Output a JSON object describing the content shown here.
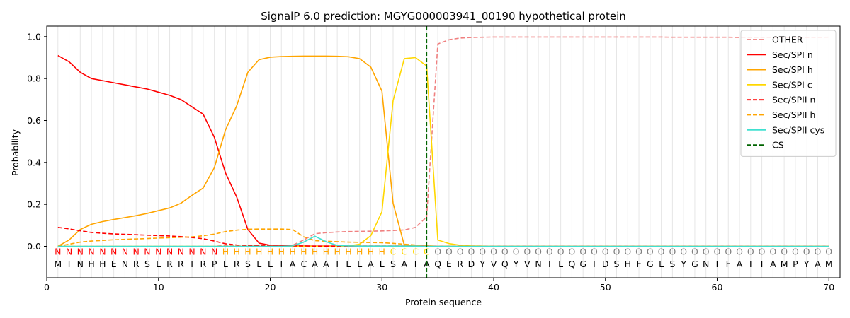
{
  "chart_data": {
    "type": "line",
    "title": "SignalP 6.0 prediction: MGYG000003941_00190 hypothetical protein",
    "xlabel": "Protein sequence",
    "ylabel": "Probability",
    "xlim": [
      0,
      71
    ],
    "ylim": [
      -0.15,
      1.05
    ],
    "xticks": [
      0,
      10,
      20,
      30,
      40,
      50,
      60,
      70
    ],
    "yticks": [
      0.0,
      0.2,
      0.4,
      0.6,
      0.8,
      1.0
    ],
    "grid": "vertical lines at each residue",
    "legend_position": "top-right",
    "sequence": [
      "M",
      "T",
      "N",
      "H",
      "H",
      "E",
      "N",
      "R",
      "S",
      "L",
      "R",
      "R",
      "I",
      "R",
      "P",
      "L",
      "R",
      "S",
      "L",
      "L",
      "T",
      "A",
      "C",
      "A",
      "A",
      "T",
      "L",
      "L",
      "A",
      "L",
      "S",
      "A",
      "T",
      "A",
      "Q",
      "E",
      "R",
      "D",
      "Y",
      "V",
      "Q",
      "Y",
      "V",
      "N",
      "T",
      "L",
      "Q",
      "G",
      "T",
      "D",
      "S",
      "H",
      "F",
      "G",
      "L",
      "S",
      "Y",
      "G",
      "N",
      "T",
      "F",
      "A",
      "T",
      "T",
      "A",
      "M",
      "P",
      "Y",
      "A",
      "M"
    ],
    "labels": [
      "N",
      "N",
      "N",
      "N",
      "N",
      "N",
      "N",
      "N",
      "N",
      "N",
      "N",
      "N",
      "N",
      "N",
      "N",
      "H",
      "H",
      "H",
      "H",
      "H",
      "H",
      "H",
      "H",
      "H",
      "H",
      "H",
      "H",
      "H",
      "H",
      "H",
      "C",
      "C",
      "C",
      "C",
      "O",
      "O",
      "O",
      "O",
      "O",
      "O",
      "O",
      "O",
      "O",
      "O",
      "O",
      "O",
      "O",
      "O",
      "O",
      "O",
      "O",
      "O",
      "O",
      "O",
      "O",
      "O",
      "O",
      "O",
      "O",
      "O",
      "O",
      "O",
      "O",
      "O",
      "O",
      "O",
      "O",
      "O",
      "O",
      "O"
    ],
    "label_colors": {
      "N": "#ff0000",
      "H": "#ffa500",
      "C": "#ffd700",
      "O": "#808080"
    },
    "cleavage_site": 34,
    "series": [
      {
        "name": "OTHER",
        "color": "#f08080",
        "dash": true,
        "values": [
          0.0,
          0.0,
          0.0,
          0.0,
          0.0,
          0.0,
          0.0,
          0.0,
          0.0,
          0.0,
          0.0,
          0.0,
          0.0,
          0.0,
          0.0,
          0.005,
          0.005,
          0.005,
          0.005,
          0.005,
          0.005,
          0.005,
          0.03,
          0.06,
          0.065,
          0.068,
          0.07,
          0.071,
          0.072,
          0.073,
          0.075,
          0.078,
          0.09,
          0.14,
          0.965,
          0.985,
          0.993,
          0.996,
          0.997,
          0.998,
          0.998,
          0.998,
          0.998,
          0.998,
          0.998,
          0.998,
          0.998,
          0.998,
          0.998,
          0.998,
          0.998,
          0.998,
          0.998,
          0.998,
          0.998,
          0.997,
          0.997,
          0.997,
          0.997,
          0.997,
          0.997,
          0.996,
          0.996,
          0.996,
          0.996,
          0.996,
          0.996,
          0.996,
          0.996,
          0.997
        ]
      },
      {
        "name": "Sec/SPI n",
        "color": "#ff0000",
        "dash": false,
        "values": [
          0.91,
          0.88,
          0.83,
          0.8,
          0.79,
          0.78,
          0.77,
          0.76,
          0.75,
          0.735,
          0.72,
          0.7,
          0.665,
          0.63,
          0.52,
          0.35,
          0.235,
          0.08,
          0.015,
          0.005,
          0.003,
          0.002,
          0.001,
          0.001,
          0.001,
          0.001,
          0.001,
          0.001,
          0.001,
          0.001,
          0.001,
          0.001,
          0.001,
          0.001,
          0.0,
          0.0,
          0.0,
          0.0,
          0.0,
          0.0,
          0.0,
          0.0,
          0.0,
          0.0,
          0.0,
          0.0,
          0.0,
          0.0,
          0.0,
          0.0,
          0.0,
          0.0,
          0.0,
          0.0,
          0.0,
          0.0,
          0.0,
          0.0,
          0.0,
          0.0,
          0.0,
          0.0,
          0.0,
          0.0,
          0.0,
          0.0,
          0.0,
          0.0,
          0.0,
          0.0
        ]
      },
      {
        "name": "Sec/SPI h",
        "color": "#ffa500",
        "dash": false,
        "values": [
          0.0,
          0.03,
          0.08,
          0.105,
          0.118,
          0.128,
          0.137,
          0.146,
          0.157,
          0.17,
          0.183,
          0.205,
          0.243,
          0.278,
          0.375,
          0.555,
          0.67,
          0.83,
          0.89,
          0.902,
          0.905,
          0.906,
          0.907,
          0.907,
          0.907,
          0.906,
          0.904,
          0.895,
          0.855,
          0.74,
          0.205,
          0.005,
          0.002,
          0.001,
          0.0,
          0.0,
          0.0,
          0.0,
          0.0,
          0.0,
          0.0,
          0.0,
          0.0,
          0.0,
          0.0,
          0.0,
          0.0,
          0.0,
          0.0,
          0.0,
          0.0,
          0.0,
          0.0,
          0.0,
          0.0,
          0.0,
          0.0,
          0.0,
          0.0,
          0.0,
          0.0,
          0.0,
          0.0,
          0.0,
          0.0,
          0.0,
          0.0,
          0.0,
          0.0,
          0.0
        ]
      },
      {
        "name": "Sec/SPI c",
        "color": "#ffd700",
        "dash": false,
        "values": [
          0.0,
          0.0,
          0.0,
          0.0,
          0.0,
          0.0,
          0.0,
          0.0,
          0.0,
          0.0,
          0.0,
          0.0,
          0.0,
          0.0,
          0.0,
          0.0,
          0.0,
          0.0,
          0.0,
          0.0,
          0.0,
          0.0,
          0.0,
          0.0,
          0.0,
          0.0,
          0.002,
          0.01,
          0.05,
          0.165,
          0.695,
          0.895,
          0.9,
          0.86,
          0.03,
          0.013,
          0.005,
          0.002,
          0.001,
          0.0,
          0.0,
          0.0,
          0.0,
          0.0,
          0.0,
          0.0,
          0.0,
          0.0,
          0.0,
          0.0,
          0.0,
          0.0,
          0.0,
          0.0,
          0.0,
          0.0,
          0.0,
          0.0,
          0.0,
          0.0,
          0.0,
          0.0,
          0.0,
          0.0,
          0.0,
          0.0,
          0.0,
          0.0,
          0.0,
          0.0
        ]
      },
      {
        "name": "Sec/SPII n",
        "color": "#ff0000",
        "dash": true,
        "values": [
          0.09,
          0.083,
          0.074,
          0.066,
          0.062,
          0.059,
          0.057,
          0.055,
          0.053,
          0.051,
          0.049,
          0.046,
          0.042,
          0.036,
          0.025,
          0.012,
          0.006,
          0.004,
          0.003,
          0.002,
          0.002,
          0.002,
          0.002,
          0.001,
          0.001,
          0.001,
          0.001,
          0.001,
          0.001,
          0.001,
          0.001,
          0.001,
          0.001,
          0.001,
          0.0,
          0.0,
          0.0,
          0.0,
          0.0,
          0.0,
          0.0,
          0.0,
          0.0,
          0.0,
          0.0,
          0.0,
          0.0,
          0.0,
          0.0,
          0.0,
          0.0,
          0.0,
          0.0,
          0.0,
          0.0,
          0.0,
          0.0,
          0.0,
          0.0,
          0.0,
          0.0,
          0.0,
          0.0,
          0.0,
          0.0,
          0.0,
          0.0,
          0.0,
          0.0,
          0.0
        ]
      },
      {
        "name": "Sec/SPII h",
        "color": "#ffa500",
        "dash": true,
        "values": [
          0.0,
          0.01,
          0.02,
          0.025,
          0.028,
          0.031,
          0.033,
          0.035,
          0.037,
          0.039,
          0.041,
          0.043,
          0.045,
          0.05,
          0.058,
          0.07,
          0.077,
          0.081,
          0.082,
          0.082,
          0.082,
          0.08,
          0.045,
          0.027,
          0.024,
          0.022,
          0.02,
          0.019,
          0.018,
          0.017,
          0.014,
          0.01,
          0.006,
          0.003,
          0.0,
          0.0,
          0.0,
          0.0,
          0.0,
          0.0,
          0.0,
          0.0,
          0.0,
          0.0,
          0.0,
          0.0,
          0.0,
          0.0,
          0.0,
          0.0,
          0.0,
          0.0,
          0.0,
          0.0,
          0.0,
          0.0,
          0.0,
          0.0,
          0.0,
          0.0,
          0.0,
          0.0,
          0.0,
          0.0,
          0.0,
          0.0,
          0.0,
          0.0,
          0.0,
          0.0
        ]
      },
      {
        "name": "Sec/SPII cys",
        "color": "#40e0d0",
        "dash": false,
        "values": [
          0.0,
          0.0,
          0.0,
          0.0,
          0.0,
          0.0,
          0.0,
          0.0,
          0.0,
          0.0,
          0.0,
          0.0,
          0.0,
          0.0,
          0.0,
          0.0,
          0.0,
          0.0,
          0.0,
          0.0,
          0.0,
          0.002,
          0.02,
          0.048,
          0.022,
          0.004,
          0.002,
          0.001,
          0.001,
          0.001,
          0.001,
          0.001,
          0.001,
          0.0,
          0.0,
          0.0,
          0.0,
          0.0,
          0.0,
          0.0,
          0.0,
          0.0,
          0.0,
          0.0,
          0.0,
          0.0,
          0.0,
          0.0,
          0.0,
          0.0,
          0.0,
          0.0,
          0.0,
          0.0,
          0.0,
          0.0,
          0.0,
          0.0,
          0.0,
          0.0,
          0.0,
          0.0,
          0.0,
          0.0,
          0.0,
          0.0,
          0.0,
          0.0,
          0.0,
          0.0
        ]
      }
    ],
    "cs_legend": {
      "name": "CS",
      "color": "#006400"
    }
  }
}
